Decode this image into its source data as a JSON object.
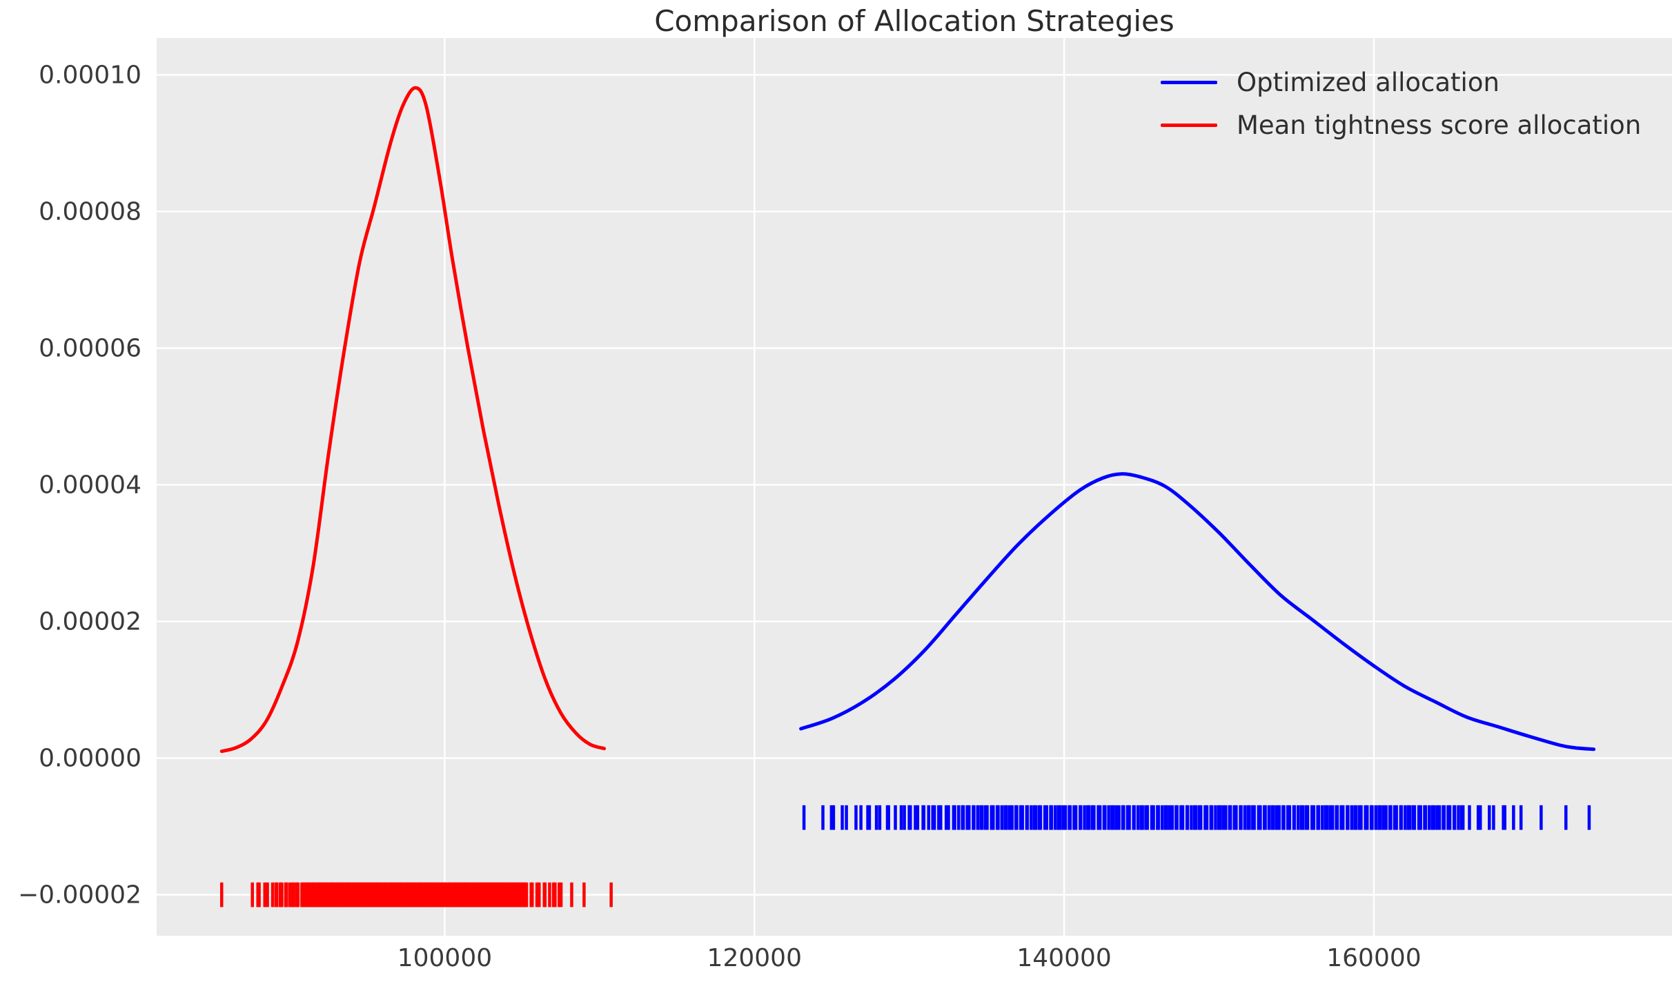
{
  "title": "Comparison of Allocation Strategies",
  "colors": {
    "figure_background": "#ffffff",
    "plot_background": "#ebebeb",
    "grid": "#ffffff",
    "text": "#3a3a3a",
    "optimized": "#0000ff",
    "mean_tightness": "#ff0000"
  },
  "legend": {
    "position": "upper right",
    "entries": [
      {
        "label": "Optimized allocation",
        "color": "#0000ff"
      },
      {
        "label": "Mean tightness score allocation",
        "color": "#ff0000"
      }
    ]
  },
  "chart_data": {
    "type": "line",
    "title": "Comparison of Allocation Strategies",
    "xlabel": "",
    "ylabel": "",
    "grid": true,
    "xlim": [
      81400,
      179250
    ],
    "ylim": [
      -2.6e-05,
      0.0001054
    ],
    "x_ticks": {
      "values": [
        100000,
        120000,
        140000,
        160000
      ],
      "labels": [
        "100000",
        "120000",
        "140000",
        "160000"
      ]
    },
    "y_ticks": {
      "values": [
        0.0001,
        8e-05,
        6e-05,
        4e-05,
        2e-05,
        0,
        -2e-05
      ],
      "labels": [
        "0.00010",
        "0.00008",
        "0.00006",
        "0.00004",
        "0.00002",
        "0.00000",
        "−0.00002"
      ]
    },
    "series": [
      {
        "name": "Optimized allocation",
        "color": "#0000ff",
        "x": [
          123000,
          125000,
          127000,
          129000,
          131000,
          133000,
          135000,
          137000,
          139000,
          141000,
          142500,
          143700,
          145000,
          146500,
          148000,
          150000,
          152000,
          154000,
          156000,
          158000,
          160000,
          162000,
          164000,
          166000,
          168000,
          170000,
          172000,
          173000,
          174200
        ],
        "y": [
          4.3e-06,
          5.8e-06,
          8.2e-06,
          1.15e-05,
          1.58e-05,
          2.1e-05,
          2.62e-05,
          3.12e-05,
          3.55e-05,
          3.92e-05,
          4.1e-05,
          4.16e-05,
          4.11e-05,
          3.98e-05,
          3.72e-05,
          3.3e-05,
          2.83e-05,
          2.38e-05,
          2.03e-05,
          1.68e-05,
          1.35e-05,
          1.05e-05,
          8.2e-06,
          6e-06,
          4.6e-06,
          3.2e-06,
          1.9e-06,
          1.5e-06,
          1.3e-06
        ],
        "peak": {
          "x": 143700,
          "y": 4.16e-05
        }
      },
      {
        "name": "Mean tightness score allocation",
        "color": "#ff0000",
        "x": [
          85600,
          86500,
          87500,
          88500,
          89500,
          90500,
          91500,
          92500,
          93500,
          94500,
          95450,
          96500,
          97300,
          98100,
          98800,
          99700,
          100500,
          101500,
          102500,
          103500,
          104500,
          105500,
          106500,
          107500,
          108500,
          109400,
          110300
        ],
        "y": [
          1e-06,
          1.5e-06,
          2.8e-06,
          5.5e-06,
          1.05e-05,
          1.7e-05,
          2.8e-05,
          4.45e-05,
          5.95e-05,
          7.25e-05,
          8.07e-05,
          9e-05,
          9.55e-05,
          9.81e-05,
          9.55e-05,
          8.45e-05,
          7.3e-05,
          6e-05,
          4.8e-05,
          3.7e-05,
          2.7e-05,
          1.85e-05,
          1.15e-05,
          6.6e-06,
          3.6e-06,
          2e-06,
          1.4e-06
        ],
        "peak": {
          "x": 98100,
          "y": 9.81e-05
        }
      }
    ],
    "rugs": [
      {
        "name": "Optimized allocation",
        "color": "#0000ff",
        "y_center": -8.7e-06,
        "y_half": 1.8e-06,
        "singles": [
          123200,
          170800,
          172400,
          173900
        ],
        "segments": [
          {
            "from": 124450,
            "to": 126400,
            "n": 6
          },
          {
            "from": 126900,
            "to": 129400,
            "n": 9
          },
          {
            "from": 129700,
            "to": 133000,
            "n": 16
          },
          {
            "from": 133200,
            "to": 165800,
            "n": 190
          },
          {
            "from": 166200,
            "to": 169400,
            "n": 9
          }
        ]
      },
      {
        "name": "Mean tightness score allocation",
        "color": "#ff0000",
        "y_center": -2e-05,
        "y_half": 1.8e-06,
        "singles": [
          85600,
          108200,
          109000,
          110750
        ],
        "segments": [
          {
            "from": 87600,
            "to": 88600,
            "n": 5
          },
          {
            "from": 88900,
            "to": 90900,
            "n": 14
          },
          {
            "from": 91000,
            "to": 105200,
            "n": 150
          },
          {
            "from": 105300,
            "to": 107600,
            "n": 12
          }
        ]
      }
    ],
    "jitter": [
      0.42,
      0.88,
      0.15,
      0.65,
      0.3,
      0.95,
      0.1,
      0.55,
      0.78,
      0.22,
      0.5,
      0.05,
      0.72,
      0.35,
      0.9,
      0.18,
      0.6,
      0.83,
      0.28,
      0.48
    ]
  }
}
